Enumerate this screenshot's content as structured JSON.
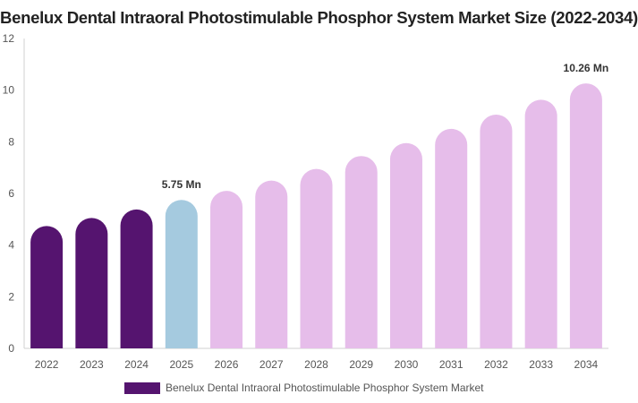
{
  "chart_data": {
    "type": "bar",
    "title": "Benelux Dental Intraoral Photostimulable Phosphor System Market Size (2022-2034)",
    "categories": [
      "2022",
      "2023",
      "2024",
      "2025",
      "2026",
      "2027",
      "2028",
      "2029",
      "2030",
      "2031",
      "2032",
      "2033",
      "2034"
    ],
    "series": [
      {
        "name": "Benelux Dental Intraoral Photostimulable Phosphor System Market",
        "values": [
          4.74,
          5.05,
          5.38,
          5.75,
          6.1,
          6.5,
          6.95,
          7.45,
          7.95,
          8.5,
          9.05,
          9.63,
          10.26
        ]
      }
    ],
    "bar_colors": [
      "#55146f",
      "#55146f",
      "#55146f",
      "#a5cadf",
      "#e6bdea",
      "#e6bdea",
      "#e6bdea",
      "#e6bdea",
      "#e6bdea",
      "#e6bdea",
      "#e6bdea",
      "#e6bdea",
      "#e6bdea"
    ],
    "data_labels": [
      {
        "category": "2025",
        "text": "5.75 Mn"
      },
      {
        "category": "2034",
        "text": "10.26 Mn"
      }
    ],
    "ylim": [
      0,
      12
    ],
    "yticks": [
      0,
      2,
      4,
      6,
      8,
      10,
      12
    ],
    "xlabel": "",
    "ylabel": "",
    "grid": false,
    "legend": {
      "position": "bottom",
      "label": "Benelux Dental Intraoral Photostimulable Phosphor System Market",
      "color": "#55146f"
    },
    "colors": {
      "axis": "#d0d0d0",
      "tick_text": "#555555",
      "label_text": "#333333"
    }
  }
}
